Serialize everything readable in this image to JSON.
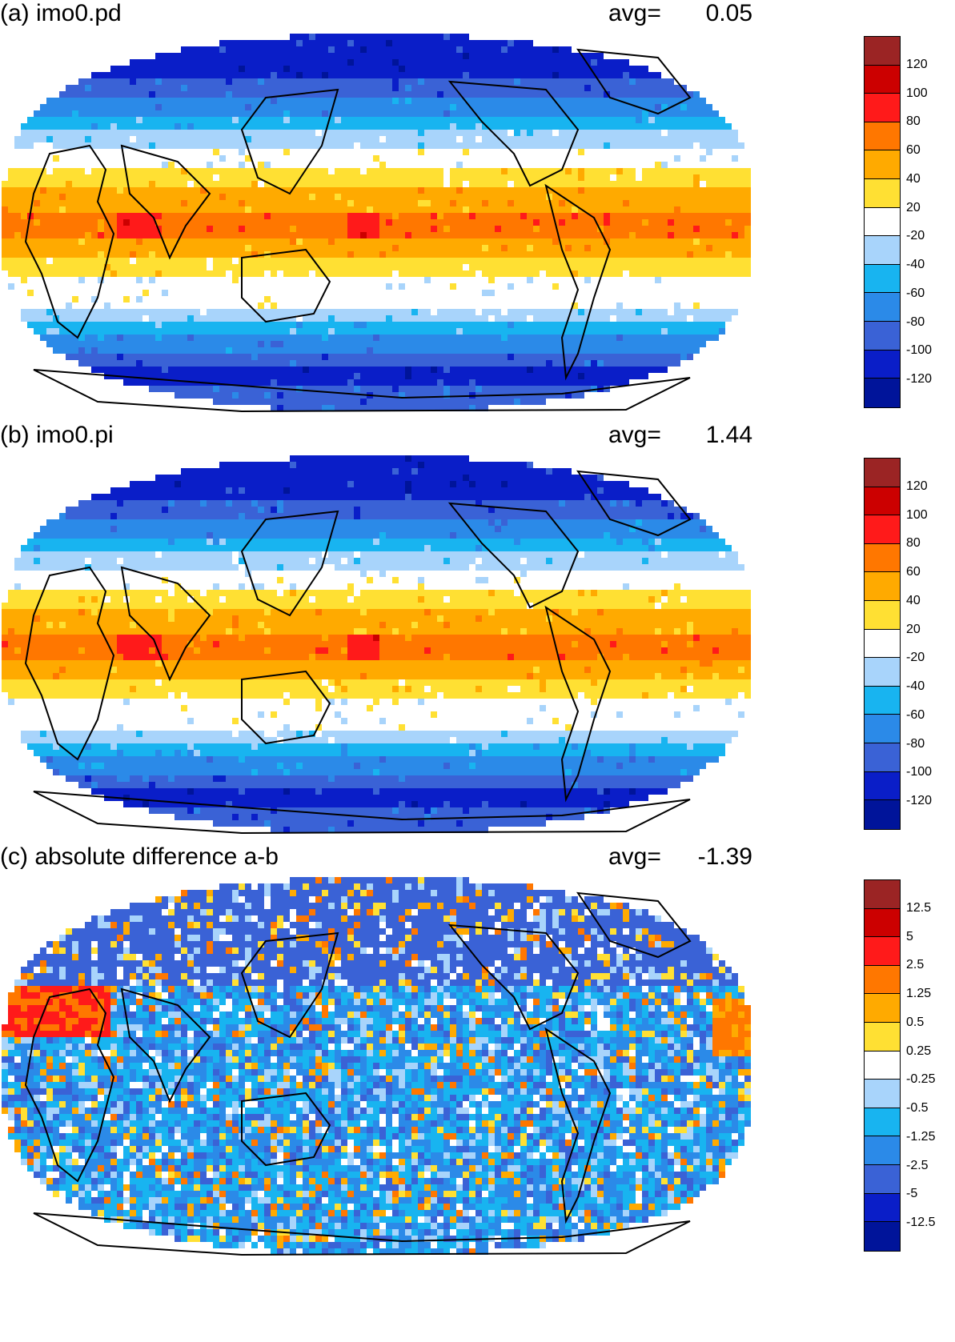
{
  "colors": [
    "#9b2424",
    "#cc0000",
    "#ff1a1a",
    "#ff7700",
    "#ffaa00",
    "#ffe033",
    "#ffffff",
    "#a8d4fb",
    "#18b4f0",
    "#2b8ae8",
    "#3a62d6",
    "#0a1ec8",
    "#00149a"
  ],
  "panels": [
    {
      "id": "a",
      "title": "(a) imo0.pd",
      "avg_label": "avg=",
      "avg_value": "0.05",
      "colorbar_ticks": [
        "120",
        "100",
        "80",
        "60",
        "40",
        "20",
        "-20",
        "-40",
        "-60",
        "-80",
        "-100",
        "-120"
      ],
      "pattern": "field"
    },
    {
      "id": "b",
      "title": "(b) imo0.pi",
      "avg_label": "avg=",
      "avg_value": "1.44",
      "colorbar_ticks": [
        "120",
        "100",
        "80",
        "60",
        "40",
        "20",
        "-20",
        "-40",
        "-60",
        "-80",
        "-100",
        "-120"
      ],
      "pattern": "field"
    },
    {
      "id": "c",
      "title": "(c) absolute difference a-b",
      "avg_label": "avg=",
      "avg_value": "-1.39",
      "colorbar_ticks": [
        "12.5",
        "5",
        "2.5",
        "1.25",
        "0.5",
        "0.25",
        "-0.25",
        "-0.5",
        "-1.25",
        "-2.5",
        "-5",
        "-12.5"
      ],
      "pattern": "difference"
    }
  ]
}
